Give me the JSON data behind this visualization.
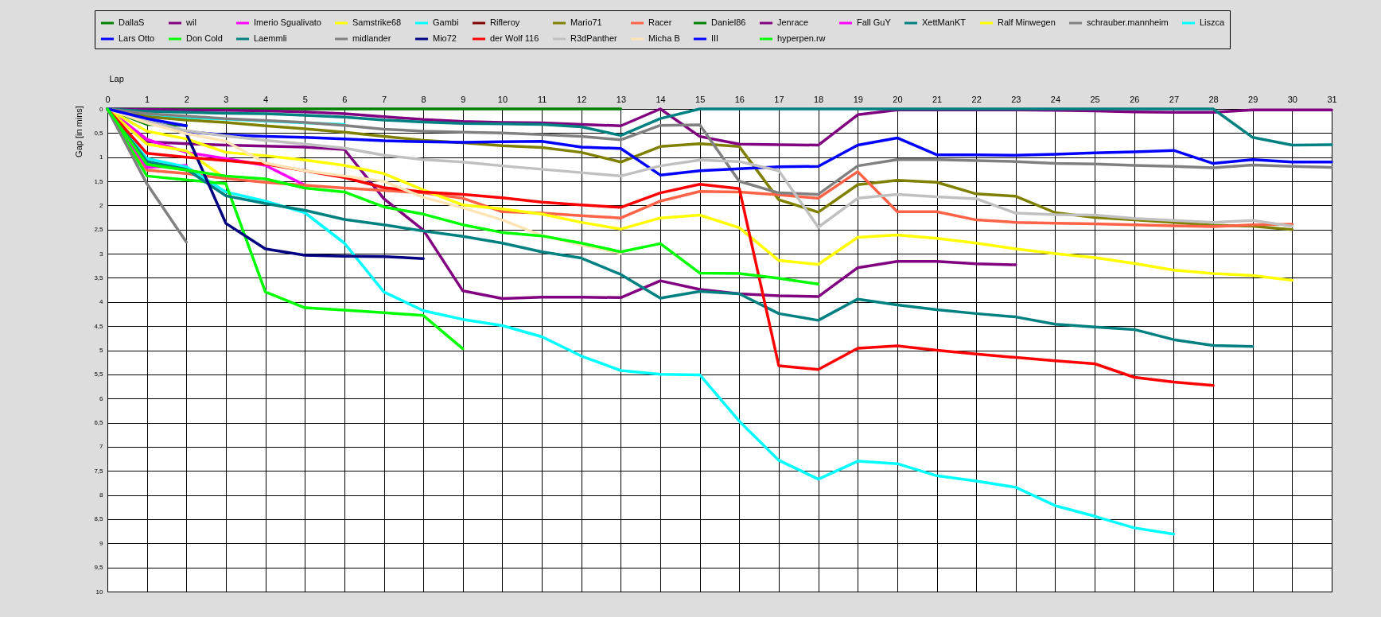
{
  "chart_data": {
    "type": "line",
    "xlabel": "Lap",
    "ylabel": "Gap [in mins]",
    "x": [
      0,
      1,
      2,
      3,
      4,
      5,
      6,
      7,
      8,
      9,
      10,
      11,
      12,
      13,
      14,
      15,
      16,
      17,
      18,
      19,
      20,
      21,
      22,
      23,
      24,
      25,
      26,
      27,
      28,
      29,
      30,
      31
    ],
    "xlim": [
      0,
      31
    ],
    "xticks": [
      0,
      1,
      2,
      3,
      4,
      5,
      6,
      7,
      8,
      9,
      10,
      11,
      12,
      13,
      14,
      15,
      16,
      17,
      18,
      19,
      20,
      21,
      22,
      23,
      24,
      25,
      26,
      27,
      28,
      29,
      30,
      31
    ],
    "ylim": [
      10,
      0
    ],
    "yticks": [
      0,
      {
        "value": 0.5,
        "label": "0,5"
      },
      1,
      {
        "value": 1.5,
        "label": "1,5"
      },
      2,
      {
        "value": 2.5,
        "label": "2,5"
      },
      3,
      {
        "value": 3.5,
        "label": "3,5"
      },
      4,
      {
        "value": 4.5,
        "label": "4,5"
      },
      5,
      {
        "value": 5.5,
        "label": "5,5"
      },
      6,
      {
        "value": 6.5,
        "label": "6,5"
      },
      7,
      {
        "value": 7.5,
        "label": "7,5"
      },
      8,
      {
        "value": 8.5,
        "label": "8,5"
      },
      9,
      {
        "value": 9.5,
        "label": "9,5"
      },
      10
    ],
    "grid": true,
    "legend": "top",
    "line_style": "solid",
    "series": [
      {
        "name": "DallaS",
        "color": "#008000",
        "values": [
          0,
          0,
          0,
          0,
          0,
          0,
          0,
          0,
          0,
          0,
          0,
          0,
          0,
          0,
          null,
          null,
          null,
          null,
          null,
          null,
          null,
          null,
          null,
          null,
          null,
          null,
          null,
          null,
          null,
          null,
          null,
          null
        ]
      },
      {
        "name": "wil",
        "color": "#800080",
        "values": [
          0,
          0.68,
          0.72,
          0.75,
          0.77,
          0.79,
          0.84,
          1.86,
          2.51,
          3.77,
          3.93,
          3.9,
          3.9,
          3.91,
          3.56,
          3.74,
          3.83,
          3.87,
          3.89,
          3.29,
          3.16,
          3.16,
          3.21,
          3.23,
          null,
          null,
          null,
          null,
          null,
          null,
          null,
          null
        ]
      },
      {
        "name": "Imerio Sgualivato",
        "color": "#ff00ff",
        "values": [
          0,
          0.63,
          0.9,
          1.03,
          1.17,
          1.58,
          null,
          null,
          null,
          null,
          null,
          null,
          null,
          null,
          null,
          null,
          null,
          null,
          null,
          null,
          null,
          null,
          null,
          null,
          null,
          null,
          null,
          null,
          null,
          null,
          null,
          null
        ]
      },
      {
        "name": "Samstrike68",
        "color": "#ffff00",
        "values": [
          0,
          0.73,
          0.87,
          1.45,
          null,
          null,
          null,
          null,
          null,
          null,
          null,
          null,
          null,
          null,
          null,
          null,
          null,
          null,
          null,
          null,
          null,
          null,
          null,
          null,
          null,
          null,
          null,
          null,
          null,
          null,
          null,
          null
        ]
      },
      {
        "name": "Gambi",
        "color": "#00ffff",
        "values": [
          0,
          0.13,
          0.18,
          0.21,
          0.25,
          0.29,
          0.32,
          null,
          null,
          null,
          null,
          null,
          null,
          null,
          null,
          null,
          null,
          null,
          null,
          null,
          null,
          null,
          null,
          null,
          null,
          null,
          null,
          null,
          null,
          null,
          null,
          null
        ]
      },
      {
        "name": "Rifleroy",
        "color": "#800000",
        "values": [
          null,
          null,
          null,
          null,
          null,
          null,
          null,
          null,
          null,
          null,
          null,
          null,
          null,
          null,
          null,
          null,
          null,
          null,
          null,
          null,
          null,
          null,
          null,
          null,
          null,
          null,
          null,
          null,
          null,
          null,
          null,
          null
        ]
      },
      {
        "name": "Mario71",
        "color": "#808000",
        "values": [
          0,
          0.16,
          0.23,
          0.28,
          0.35,
          0.41,
          0.48,
          0.57,
          0.65,
          0.7,
          0.76,
          0.8,
          0.9,
          1.1,
          0.78,
          0.72,
          0.78,
          1.88,
          2.14,
          1.57,
          1.48,
          1.52,
          1.76,
          1.81,
          2.15,
          2.25,
          2.3,
          2.35,
          2.41,
          2.43,
          2.5,
          null
        ]
      },
      {
        "name": "Racer",
        "color": "#ff6347",
        "values": [
          0,
          1.27,
          1.34,
          1.44,
          1.52,
          1.58,
          1.64,
          1.69,
          1.74,
          1.85,
          2.13,
          2.16,
          2.21,
          2.26,
          1.91,
          1.71,
          1.72,
          1.78,
          1.85,
          1.3,
          2.13,
          2.13,
          2.3,
          2.35,
          2.37,
          2.38,
          2.4,
          2.42,
          2.44,
          2.4,
          2.39,
          null
        ]
      },
      {
        "name": "Daniel86",
        "color": "#008000",
        "values": [
          0,
          0.32,
          0.34,
          null,
          null,
          null,
          null,
          null,
          null,
          null,
          null,
          null,
          null,
          null,
          null,
          null,
          null,
          null,
          null,
          null,
          null,
          null,
          null,
          null,
          null,
          null,
          null,
          null,
          null,
          null,
          null,
          null
        ]
      },
      {
        "name": "Jenrace",
        "color": "#800080",
        "values": [
          0,
          0.01,
          0.02,
          0.03,
          0.04,
          0.06,
          0.1,
          0.16,
          0.22,
          0.26,
          0.28,
          0.29,
          0.32,
          0.35,
          0,
          0.57,
          0.73,
          0.74,
          0.75,
          0.12,
          0.02,
          0.02,
          0.02,
          0.02,
          0.03,
          0.04,
          0.06,
          0.07,
          0.07,
          0.02,
          0.02,
          0.02
        ]
      },
      {
        "name": "Fall GuY",
        "color": "#ff00ff",
        "values": [
          0,
          1.21,
          1.17,
          null,
          null,
          null,
          null,
          null,
          null,
          null,
          null,
          null,
          null,
          null,
          null,
          null,
          null,
          null,
          null,
          null,
          null,
          null,
          null,
          null,
          null,
          null,
          null,
          null,
          null,
          null,
          null,
          null
        ]
      },
      {
        "name": "XettManKT",
        "color": "#008080",
        "values": [
          0,
          0.05,
          0.07,
          0.09,
          0.1,
          0.13,
          0.17,
          0.23,
          0.27,
          0.3,
          0.31,
          0.32,
          0.37,
          0.55,
          0.2,
          0,
          0,
          0,
          0,
          0,
          0,
          0,
          0,
          0,
          0,
          0,
          0,
          0,
          0,
          0.59,
          0.75,
          0.74
        ]
      },
      {
        "name": "Ralf Minwegen",
        "color": "#ffff00",
        "values": [
          0,
          0.46,
          0.62,
          0.9,
          0.97,
          1.06,
          1.17,
          1.34,
          1.68,
          1.99,
          2.07,
          2.18,
          2.35,
          2.49,
          2.26,
          2.2,
          2.46,
          3.14,
          3.22,
          2.66,
          2.61,
          2.68,
          2.78,
          2.9,
          3.0,
          3.08,
          3.2,
          3.34,
          3.41,
          3.45,
          3.55,
          null
        ]
      },
      {
        "name": "schrauber.mannheim",
        "color": "#808080",
        "values": [
          0,
          0.1,
          0.15,
          0.2,
          0.24,
          0.28,
          0.34,
          0.42,
          0.46,
          0.48,
          0.5,
          0.53,
          0.57,
          0.64,
          0.34,
          0.33,
          1.5,
          1.74,
          1.77,
          1.18,
          1.05,
          1.05,
          1.07,
          1.09,
          1.13,
          1.14,
          1.17,
          1.19,
          1.22,
          1.16,
          1.19,
          1.21
        ]
      },
      {
        "name": "Liszca",
        "color": "#00ffff",
        "values": [
          0,
          1.03,
          1.2,
          1.72,
          1.91,
          2.15,
          2.78,
          3.79,
          4.18,
          4.36,
          4.49,
          4.72,
          5.12,
          5.42,
          5.5,
          5.51,
          6.47,
          7.28,
          7.67,
          7.3,
          7.35,
          7.6,
          7.71,
          7.84,
          8.22,
          8.44,
          8.68,
          8.81,
          null,
          null,
          null,
          null
        ]
      },
      {
        "name": "Lars Otto",
        "color": "#0000ff",
        "values": [
          0,
          0.23,
          0.47,
          0.54,
          0.57,
          0.59,
          0.62,
          0.66,
          0.68,
          0.69,
          0.68,
          0.67,
          0.79,
          0.82,
          1.37,
          1.28,
          1.24,
          1.2,
          1.19,
          0.75,
          0.6,
          0.95,
          0.95,
          0.96,
          0.94,
          0.91,
          0.89,
          0.86,
          1.13,
          1.05,
          1.1,
          1.1
        ]
      },
      {
        "name": "Don Cold",
        "color": "#00ff00",
        "values": [
          0,
          1.39,
          1.47,
          1.55,
          3.79,
          4.12,
          4.17,
          4.22,
          4.28,
          4.97,
          null,
          null,
          null,
          null,
          null,
          null,
          null,
          null,
          null,
          null,
          null,
          null,
          null,
          null,
          null,
          null,
          null,
          null,
          null,
          null,
          null,
          null
        ]
      },
      {
        "name": "Laemmli",
        "color": "#008080",
        "values": [
          0,
          1.09,
          1.25,
          1.8,
          1.96,
          2.1,
          2.29,
          2.4,
          2.53,
          2.64,
          2.78,
          2.96,
          3.09,
          3.43,
          3.92,
          3.78,
          3.83,
          4.24,
          4.38,
          3.94,
          4.06,
          4.16,
          4.24,
          4.31,
          4.46,
          4.52,
          4.57,
          4.78,
          4.9,
          4.92,
          null,
          null
        ]
      },
      {
        "name": "midlander",
        "color": "#808080",
        "values": [
          0,
          1.55,
          2.76,
          null,
          null,
          null,
          null,
          null,
          null,
          null,
          null,
          null,
          null,
          null,
          null,
          null,
          null,
          null,
          null,
          null,
          null,
          null,
          null,
          null,
          null,
          null,
          null,
          null,
          null,
          null,
          null,
          null
        ]
      },
      {
        "name": "Mio72",
        "color": "#000080",
        "values": [
          0,
          0.25,
          0.51,
          2.37,
          2.9,
          3.03,
          3.05,
          3.06,
          3.1,
          null,
          null,
          null,
          null,
          null,
          null,
          null,
          null,
          null,
          null,
          null,
          null,
          null,
          null,
          null,
          null,
          null,
          null,
          null,
          null,
          null,
          null,
          null
        ]
      },
      {
        "name": "der Wolf 116",
        "color": "#ff0000",
        "values": [
          0,
          0.92,
          1.0,
          1.07,
          1.14,
          1.28,
          1.42,
          1.63,
          1.72,
          1.77,
          1.84,
          1.93,
          1.99,
          2.04,
          1.74,
          1.56,
          1.65,
          5.32,
          5.4,
          4.96,
          4.91,
          5.0,
          5.08,
          5.15,
          5.22,
          5.28,
          5.56,
          5.66,
          5.73,
          null,
          null,
          null
        ]
      },
      {
        "name": "R3dPanther",
        "color": "#c0c0c0",
        "values": [
          0,
          0.25,
          0.45,
          0.56,
          0.65,
          0.73,
          0.81,
          0.96,
          1.05,
          1.1,
          1.18,
          1.25,
          1.32,
          1.39,
          1.18,
          1.06,
          1.09,
          1.28,
          2.45,
          1.85,
          1.77,
          1.82,
          1.86,
          2.16,
          2.19,
          2.2,
          2.27,
          2.31,
          2.35,
          2.31,
          2.43,
          null
        ]
      },
      {
        "name": "Micha B",
        "color": "#ffe4b5",
        "values": [
          0,
          0.29,
          0.51,
          0.67,
          1.12,
          1.28,
          1.39,
          1.5,
          1.83,
          2.05,
          2.3,
          2.62,
          2.82,
          2.99,
          null,
          null,
          null,
          null,
          null,
          null,
          null,
          null,
          null,
          null,
          null,
          null,
          null,
          null,
          null,
          null,
          null,
          null
        ]
      },
      {
        "name": "III",
        "color": "#0000ff",
        "values": [
          0,
          0.2,
          0.35,
          null,
          null,
          null,
          null,
          null,
          null,
          null,
          null,
          null,
          null,
          null,
          null,
          null,
          null,
          null,
          null,
          null,
          null,
          null,
          null,
          null,
          null,
          null,
          null,
          null,
          null,
          null,
          null,
          null
        ]
      },
      {
        "name": "hyperpen.rw",
        "color": "#00ff00",
        "values": [
          0,
          1.15,
          1.27,
          1.39,
          1.45,
          1.64,
          1.72,
          2.03,
          2.18,
          2.4,
          2.56,
          2.63,
          2.78,
          2.96,
          2.79,
          3.4,
          3.41,
          3.51,
          3.63,
          null,
          null,
          null,
          null,
          null,
          null,
          null,
          null,
          null,
          null,
          null,
          null,
          null
        ]
      }
    ]
  }
}
